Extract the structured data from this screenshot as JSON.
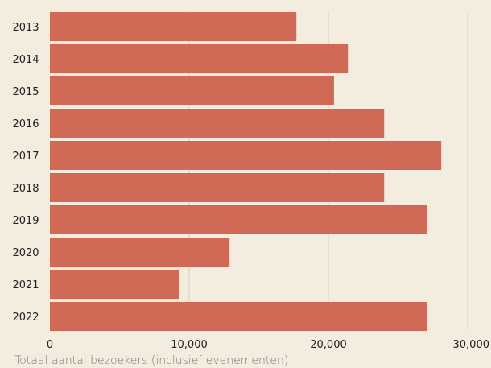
{
  "chart_data": {
    "type": "bar",
    "orientation": "horizontal",
    "categories": [
      "2013",
      "2014",
      "2015",
      "2016",
      "2017",
      "2018",
      "2019",
      "2020",
      "2021",
      "2022"
    ],
    "values": [
      17700,
      21400,
      20400,
      24000,
      28100,
      24000,
      27100,
      12900,
      9300,
      27100
    ],
    "xlabel": "Totaal aantal bezoekers (inclusief evenementen)",
    "xlim": [
      0,
      30000
    ],
    "xticks": [
      0,
      10000,
      20000,
      30000
    ],
    "xtick_labels": [
      "0",
      "10,000",
      "20,000",
      "30,000"
    ],
    "grid": "vertical",
    "bar_color": "#d06a56",
    "background": "#f3ecdf"
  }
}
